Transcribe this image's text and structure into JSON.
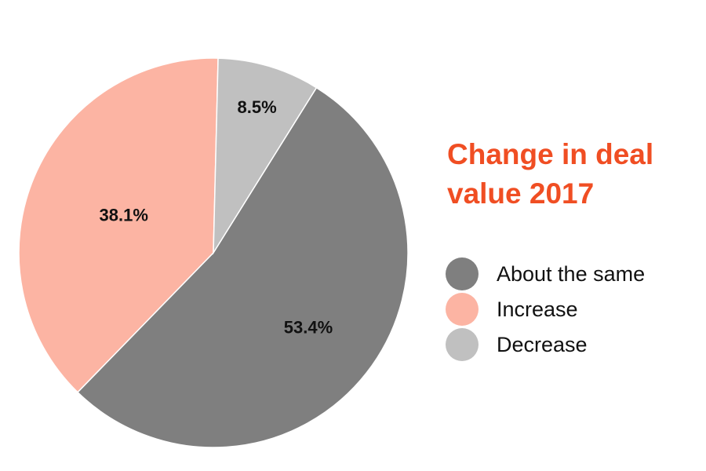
{
  "chart_data": {
    "type": "pie",
    "title_lines": [
      "Change in deal",
      "value 2017"
    ],
    "title_color": "#f04e23",
    "slices": [
      {
        "name": "About the same",
        "value": 53.4,
        "label": "53.4%",
        "color": "#7f7f7f"
      },
      {
        "name": "Increase",
        "value": 38.1,
        "label": "38.1%",
        "color": "#fcb4a3"
      },
      {
        "name": "Decrease",
        "value": 8.5,
        "label": "8.5%",
        "color": "#c0c0c0"
      }
    ],
    "start_angle_deg": 32,
    "direction": "clockwise",
    "legend_position": "right"
  }
}
